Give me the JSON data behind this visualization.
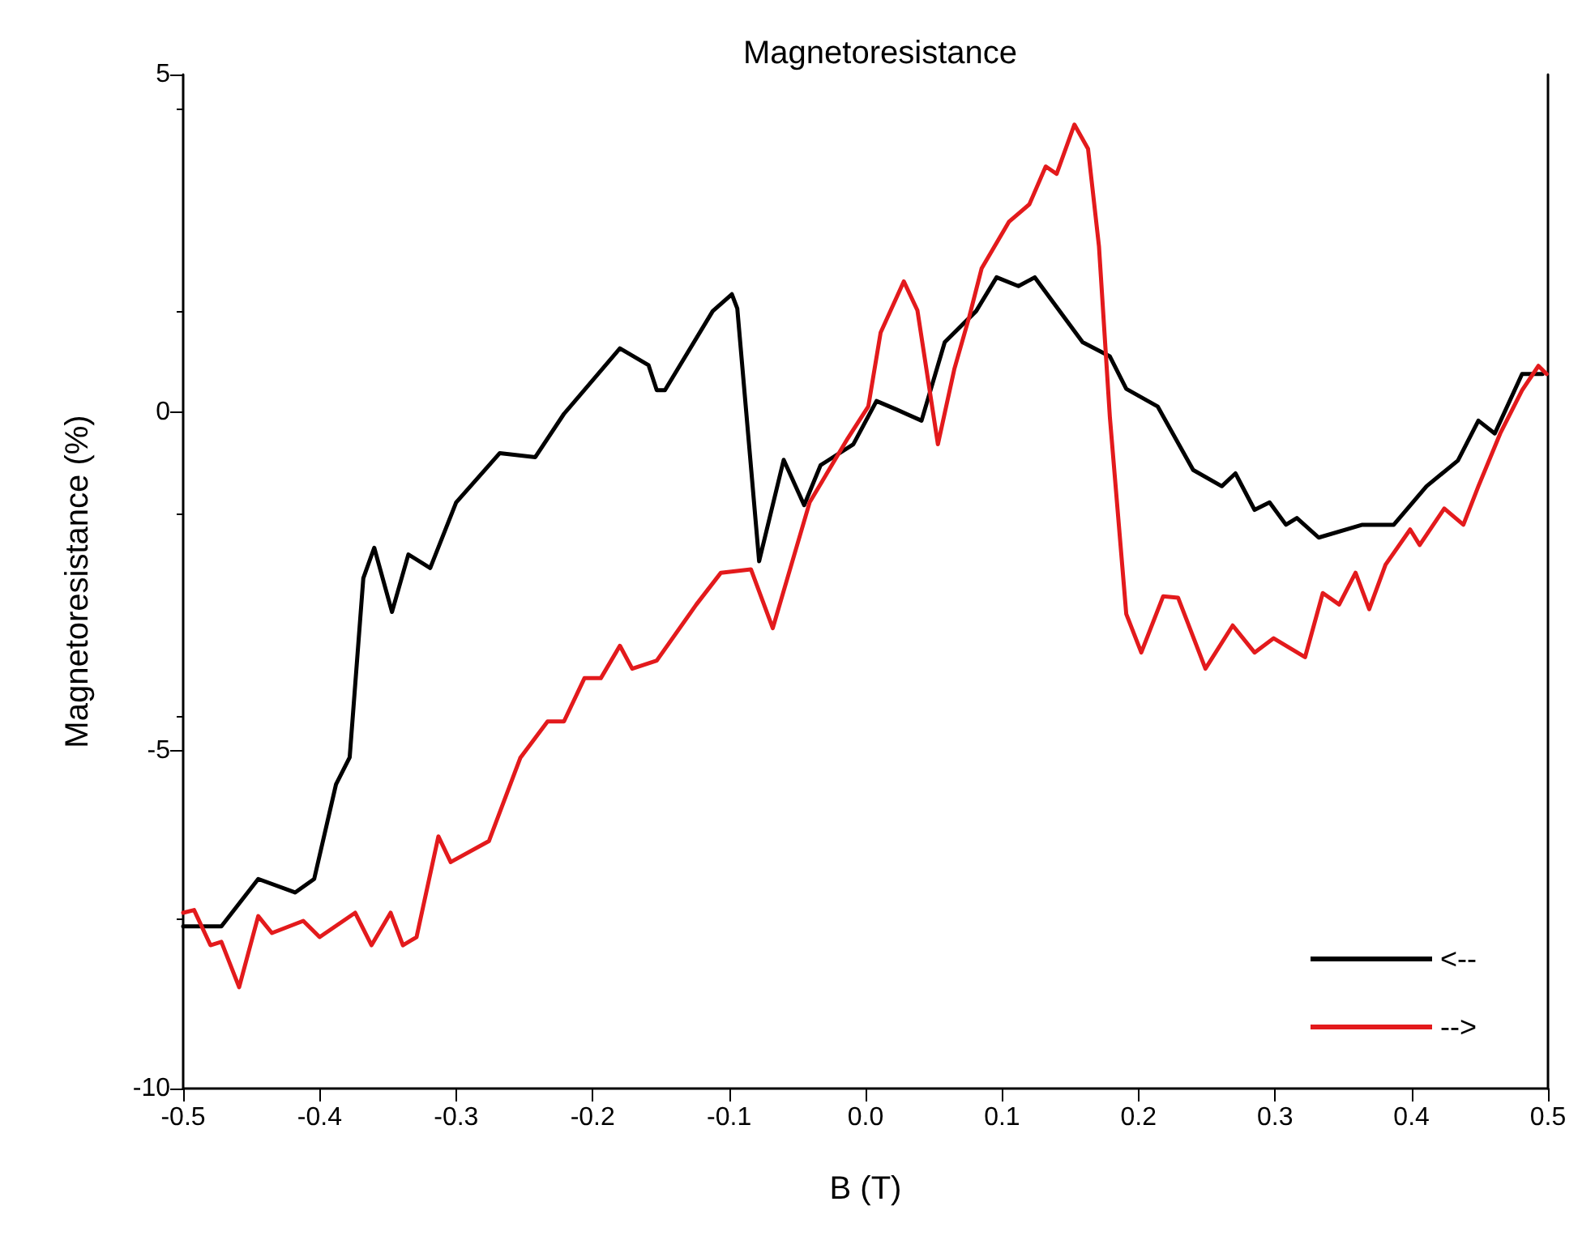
{
  "chart_data": {
    "type": "line",
    "title": "Magnetoresistance",
    "xlabel": "B (T)",
    "ylabel": "Magnetoresistance (%)",
    "xlim": [
      -0.5,
      0.5
    ],
    "ylim": [
      -10,
      5
    ],
    "xticks": [
      -0.5,
      -0.4,
      -0.3,
      -0.2,
      -0.1,
      {
        "value": 0,
        "label": "0.0"
      },
      0.1,
      0.2,
      0.3,
      0.4,
      0.5
    ],
    "yticks": [
      -10,
      -5,
      0,
      5
    ],
    "grid": false,
    "legend": "bottom right",
    "marker": "none",
    "line_style": "solid",
    "series": [
      {
        "name": "<--",
        "color": "#000000",
        "x": [
          -0.5,
          -0.472,
          -0.445,
          -0.418,
          -0.404,
          -0.388,
          -0.378,
          -0.368,
          -0.36,
          -0.347,
          -0.335,
          -0.319,
          -0.3,
          -0.268,
          -0.242,
          -0.221,
          -0.18,
          -0.159,
          -0.153,
          -0.147,
          -0.112,
          -0.098,
          -0.094,
          -0.078,
          -0.06,
          -0.045,
          -0.033,
          -0.009,
          0.008,
          0.022,
          0.041,
          0.058,
          0.081,
          0.096,
          0.112,
          0.124,
          0.159,
          0.179,
          0.191,
          0.214,
          0.24,
          0.261,
          0.271,
          0.285,
          0.296,
          0.308,
          0.316,
          0.332,
          0.364,
          0.387,
          0.411,
          0.434,
          0.449,
          0.461,
          0.481,
          0.496
        ],
        "values": [
          -7.6,
          -7.6,
          -6.9,
          -7.1,
          -6.9,
          -5.5,
          -5.1,
          -2.45,
          -2.0,
          -2.95,
          -2.1,
          -2.3,
          -1.33,
          -0.6,
          -0.66,
          -0.02,
          0.95,
          0.7,
          0.33,
          0.33,
          1.5,
          1.75,
          1.54,
          -2.2,
          -0.7,
          -1.37,
          -0.78,
          -0.47,
          0.17,
          0.05,
          -0.12,
          1.04,
          1.5,
          2.0,
          1.87,
          2.0,
          1.04,
          0.83,
          0.35,
          0.09,
          -0.85,
          -1.09,
          -0.9,
          -1.44,
          -1.33,
          -1.66,
          -1.56,
          -1.85,
          -1.66,
          -1.66,
          -1.09,
          -0.71,
          -0.12,
          -0.31,
          0.57,
          0.57
        ]
      },
      {
        "name": "-->",
        "color": "#e31a1c",
        "x": [
          -0.5,
          -0.492,
          -0.48,
          -0.472,
          -0.459,
          -0.445,
          -0.435,
          -0.412,
          -0.4,
          -0.374,
          -0.362,
          -0.348,
          -0.339,
          -0.329,
          -0.313,
          -0.304,
          -0.276,
          -0.253,
          -0.233,
          -0.221,
          -0.206,
          -0.194,
          -0.18,
          -0.171,
          -0.153,
          -0.124,
          -0.106,
          -0.084,
          -0.068,
          -0.041,
          -0.013,
          0.002,
          0.011,
          0.028,
          0.038,
          0.053,
          0.065,
          0.076,
          0.085,
          0.105,
          0.12,
          0.132,
          0.14,
          0.153,
          0.163,
          0.171,
          0.179,
          0.191,
          0.202,
          0.218,
          0.229,
          0.249,
          0.269,
          0.285,
          0.299,
          0.322,
          0.335,
          0.347,
          0.359,
          0.369,
          0.381,
          0.399,
          0.406,
          0.424,
          0.438,
          0.449,
          0.465,
          0.481,
          0.493,
          0.499
        ],
        "values": [
          -7.4,
          -7.36,
          -7.88,
          -7.83,
          -8.5,
          -7.45,
          -7.7,
          -7.52,
          -7.76,
          -7.4,
          -7.88,
          -7.4,
          -7.88,
          -7.76,
          -6.27,
          -6.65,
          -6.34,
          -5.11,
          -4.57,
          -4.57,
          -3.93,
          -3.93,
          -3.45,
          -3.79,
          -3.67,
          -2.84,
          -2.37,
          -2.32,
          -3.19,
          -1.33,
          -0.38,
          0.09,
          1.18,
          1.94,
          1.51,
          -0.47,
          0.64,
          1.42,
          2.13,
          2.82,
          3.08,
          3.64,
          3.53,
          4.26,
          3.9,
          2.46,
          -0.07,
          -2.98,
          -3.55,
          -2.72,
          -2.74,
          -3.79,
          -3.15,
          -3.55,
          -3.34,
          -3.62,
          -2.67,
          -2.84,
          -2.37,
          -2.91,
          -2.25,
          -1.73,
          -1.96,
          -1.42,
          -1.66,
          -1.09,
          -0.31,
          0.33,
          0.69,
          0.57
        ]
      }
    ]
  }
}
